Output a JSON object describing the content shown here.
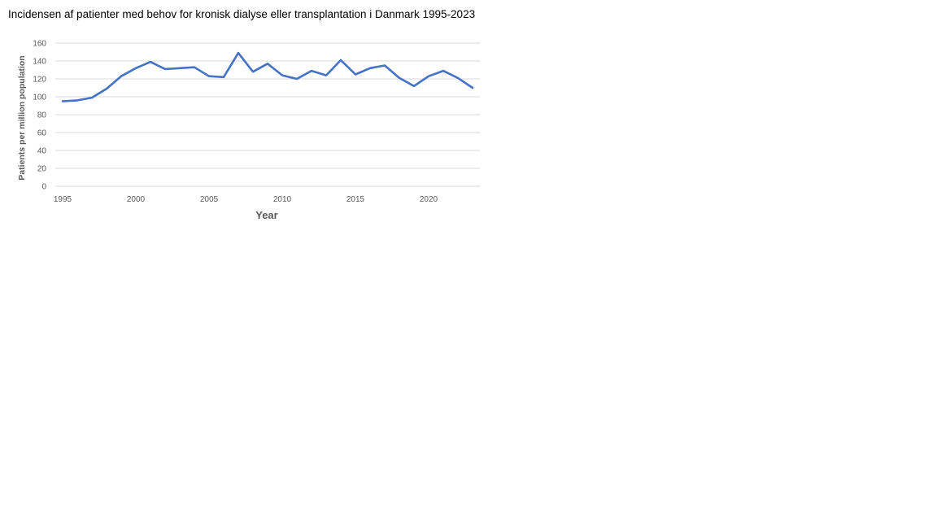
{
  "chart_data": {
    "type": "line",
    "title": "Incidensen af patienter med behov for kronisk dialyse eller transplantation i Danmark 1995-2023",
    "xlabel": "Year",
    "ylabel": "Patients per million  population",
    "xlim": [
      1995,
      2023
    ],
    "ylim": [
      0,
      160
    ],
    "x_ticks": [
      1995,
      2000,
      2005,
      2010,
      2015,
      2020
    ],
    "y_ticks": [
      0,
      20,
      40,
      60,
      80,
      100,
      120,
      140,
      160
    ],
    "grid": true,
    "legend": "none",
    "x": [
      1995,
      1996,
      1997,
      1998,
      1999,
      2000,
      2001,
      2002,
      2003,
      2004,
      2005,
      2006,
      2007,
      2008,
      2009,
      2010,
      2011,
      2012,
      2013,
      2014,
      2015,
      2016,
      2017,
      2018,
      2019,
      2020,
      2021,
      2022,
      2023
    ],
    "series": [
      {
        "color": "#4472c4",
        "values": [
          95,
          96,
          99,
          109,
          123,
          132,
          139,
          131,
          132,
          133,
          123,
          122,
          149,
          128,
          137,
          124,
          120,
          129,
          124,
          141,
          125,
          132,
          135,
          121,
          112,
          123,
          129,
          121,
          110
        ]
      }
    ]
  }
}
